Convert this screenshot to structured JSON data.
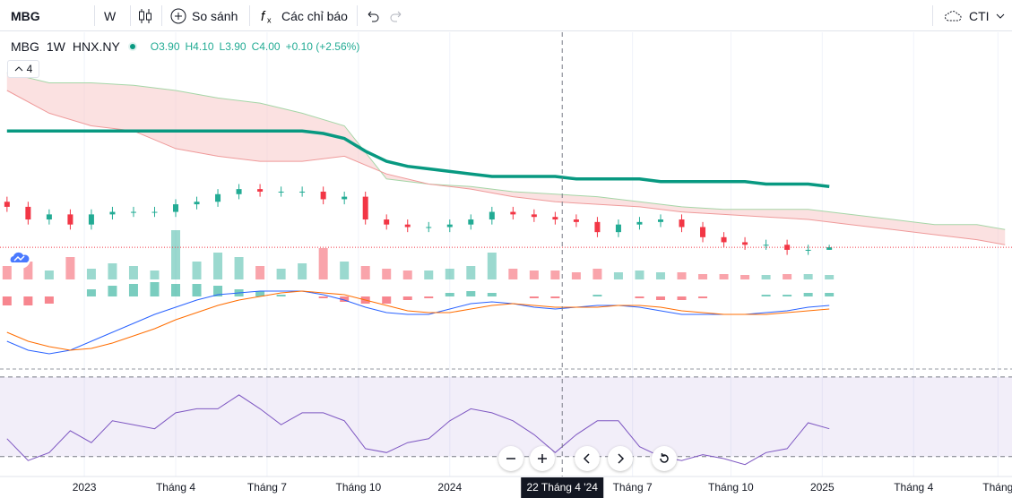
{
  "toolbar": {
    "symbol": "MBG",
    "interval": "W",
    "compare": "So sánh",
    "indicators": "Các chỉ báo",
    "layout": "CTI"
  },
  "legend": {
    "symbol": "MBG",
    "interval": "1W",
    "exchange": "HNX.NY",
    "open": "O3.90",
    "high": "H4.10",
    "low": "L3.90",
    "close": "C4.00",
    "change": "+0.10 (+2.56%)",
    "indicator_count": "4"
  },
  "chart_data": {
    "type": "candlestick",
    "xlim": [
      -1,
      143
    ],
    "ylim": [
      2.8,
      12.5
    ],
    "xticks": [
      {
        "value": 11,
        "label": "2023"
      },
      {
        "value": 24,
        "label": "Tháng 4"
      },
      {
        "value": 37,
        "label": "Tháng 7"
      },
      {
        "value": 50,
        "label": "Tháng 10"
      },
      {
        "value": 63,
        "label": "2024"
      },
      {
        "value": 89,
        "label": "Tháng 7"
      },
      {
        "value": 103,
        "label": "Tháng 10"
      },
      {
        "value": 116,
        "label": "2025"
      },
      {
        "value": 129,
        "label": "Tháng 4"
      },
      {
        "value": 141,
        "label": "Tháng"
      }
    ],
    "grid": true,
    "crosshair": {
      "value": 79,
      "label": "22 Tháng 4 '24"
    },
    "up_color": "#22ab94",
    "down_color": "#f23645",
    "x": [
      0,
      3,
      6,
      9,
      12,
      15,
      18,
      21,
      24,
      27,
      30,
      33,
      36,
      39,
      42,
      45,
      48,
      51,
      54,
      57,
      60,
      63,
      66,
      69,
      72,
      75,
      78,
      81,
      84,
      87,
      90,
      93,
      96,
      99,
      102,
      105,
      108,
      111,
      114,
      117
    ],
    "open": [
      5.8,
      5.6,
      5.1,
      5.3,
      4.9,
      5.3,
      5.4,
      5.4,
      5.4,
      5.7,
      5.8,
      6.1,
      6.3,
      6.2,
      6.2,
      6.2,
      5.9,
      6.0,
      5.1,
      4.9,
      4.8,
      4.8,
      4.9,
      5.1,
      5.4,
      5.3,
      5.2,
      5.1,
      5.0,
      4.6,
      4.9,
      5.0,
      5.1,
      4.8,
      4.4,
      4.2,
      4.1,
      4.1,
      3.9,
      3.9
    ],
    "high": [
      6.0,
      5.8,
      5.5,
      5.5,
      5.5,
      5.6,
      5.6,
      5.6,
      5.9,
      6.0,
      6.3,
      6.5,
      6.5,
      6.4,
      6.4,
      6.4,
      6.2,
      6.2,
      5.3,
      5.1,
      5.0,
      5.1,
      5.3,
      5.6,
      5.6,
      5.5,
      5.4,
      5.3,
      5.2,
      5.1,
      5.2,
      5.3,
      5.3,
      5.0,
      4.6,
      4.4,
      4.3,
      4.3,
      4.1,
      4.1
    ],
    "low": [
      5.4,
      4.9,
      4.9,
      4.7,
      4.7,
      5.1,
      5.2,
      5.2,
      5.2,
      5.5,
      5.6,
      5.9,
      6.0,
      6.0,
      6.0,
      5.7,
      5.7,
      4.9,
      4.7,
      4.6,
      4.6,
      4.6,
      4.7,
      4.9,
      5.1,
      5.0,
      4.9,
      4.8,
      4.4,
      4.4,
      4.7,
      4.8,
      4.6,
      4.2,
      4.0,
      3.9,
      3.9,
      3.7,
      3.7,
      3.9
    ],
    "close": [
      5.6,
      5.1,
      5.3,
      4.9,
      5.3,
      5.4,
      5.4,
      5.4,
      5.7,
      5.8,
      6.1,
      6.3,
      6.2,
      6.2,
      6.2,
      5.9,
      6.0,
      5.1,
      4.9,
      4.8,
      4.8,
      4.9,
      5.1,
      5.4,
      5.3,
      5.2,
      5.1,
      5.0,
      4.6,
      4.9,
      5.0,
      5.1,
      4.8,
      4.4,
      4.2,
      4.1,
      4.1,
      3.9,
      3.9,
      4.0
    ],
    "ma": {
      "color": "#089981",
      "values": [
        8.6,
        8.6,
        8.6,
        8.6,
        8.6,
        8.6,
        8.6,
        8.6,
        8.6,
        8.6,
        8.6,
        8.6,
        8.6,
        8.6,
        8.6,
        8.5,
        8.3,
        7.8,
        7.4,
        7.2,
        7.1,
        7.0,
        6.9,
        6.8,
        6.8,
        6.8,
        6.8,
        6.7,
        6.7,
        6.7,
        6.7,
        6.6,
        6.6,
        6.6,
        6.6,
        6.6,
        6.5,
        6.5,
        6.5,
        6.4
      ]
    },
    "cloud": {
      "fill": "#f7c4c4",
      "line_a": "#a5d6a7",
      "line_b": "#ef9a9a",
      "x": [
        0,
        6,
        12,
        18,
        24,
        30,
        36,
        42,
        48,
        54,
        60,
        66,
        72,
        78,
        84,
        90,
        96,
        102,
        108,
        114,
        120,
        126,
        132,
        138,
        142
      ],
      "span_a": [
        10.9,
        10.5,
        10.5,
        10.4,
        10.2,
        9.9,
        9.7,
        9.3,
        8.8,
        6.7,
        6.5,
        6.4,
        6.2,
        6.1,
        6.0,
        5.8,
        5.6,
        5.5,
        5.5,
        5.5,
        5.3,
        5.1,
        4.9,
        4.9,
        4.7
      ],
      "span_b": [
        10.2,
        9.3,
        8.8,
        8.6,
        7.9,
        7.6,
        7.4,
        7.4,
        7.6,
        6.9,
        6.5,
        6.3,
        6.0,
        5.8,
        5.7,
        5.6,
        5.4,
        5.3,
        5.2,
        5.1,
        4.9,
        4.7,
        4.5,
        4.3,
        4.1
      ]
    },
    "volume": {
      "ylim": [
        0,
        70
      ],
      "values": [
        15,
        20,
        10,
        25,
        12,
        18,
        15,
        10,
        55,
        20,
        30,
        25,
        15,
        12,
        18,
        35,
        20,
        15,
        12,
        10,
        10,
        12,
        15,
        30,
        12,
        10,
        10,
        8,
        12,
        8,
        10,
        8,
        8,
        6,
        6,
        5,
        5,
        6,
        6,
        5
      ]
    },
    "macd": {
      "ylim": [
        -0.37,
        0.095
      ],
      "line_color": "#2962ff",
      "signal_color": "#ff6d00",
      "line": [
        -0.25,
        -0.3,
        -0.32,
        -0.3,
        -0.25,
        -0.2,
        -0.15,
        -0.1,
        -0.06,
        -0.02,
        0.01,
        0.02,
        0.03,
        0.03,
        0.03,
        0.01,
        -0.02,
        -0.06,
        -0.09,
        -0.1,
        -0.1,
        -0.07,
        -0.04,
        -0.03,
        -0.04,
        -0.06,
        -0.07,
        -0.06,
        -0.05,
        -0.05,
        -0.06,
        -0.08,
        -0.1,
        -0.1,
        -0.1,
        -0.1,
        -0.09,
        -0.08,
        -0.06,
        -0.05
      ],
      "signal": [
        -0.2,
        -0.25,
        -0.28,
        -0.3,
        -0.29,
        -0.26,
        -0.22,
        -0.18,
        -0.13,
        -0.09,
        -0.05,
        -0.02,
        0,
        0.02,
        0.03,
        0.02,
        0.01,
        -0.02,
        -0.05,
        -0.08,
        -0.09,
        -0.09,
        -0.07,
        -0.05,
        -0.04,
        -0.05,
        -0.06,
        -0.06,
        -0.06,
        -0.05,
        -0.05,
        -0.06,
        -0.08,
        -0.09,
        -0.1,
        -0.1,
        -0.1,
        -0.09,
        -0.08,
        -0.07
      ],
      "histogram": [
        -0.05,
        -0.05,
        -0.04,
        0,
        0.04,
        0.06,
        0.07,
        0.08,
        0.07,
        0.07,
        0.06,
        0.04,
        0.03,
        0.01,
        0,
        -0.01,
        -0.03,
        -0.04,
        -0.04,
        -0.02,
        -0.01,
        0.02,
        0.03,
        0.02,
        0,
        -0.01,
        -0.01,
        0,
        0.01,
        0,
        -0.01,
        -0.02,
        -0.02,
        -0.01,
        0,
        0,
        0.01,
        0.01,
        0.02,
        0.02
      ]
    },
    "rsi": {
      "ylim": [
        20,
        74
      ],
      "color": "#7e57c2",
      "bands": [
        70,
        30
      ],
      "values": [
        39,
        28,
        32,
        43,
        37,
        48,
        46,
        44,
        52,
        54,
        54,
        61,
        54,
        46,
        52,
        52,
        48,
        34,
        32,
        37,
        39,
        48,
        54,
        52,
        48,
        41,
        32,
        41,
        48,
        48,
        35,
        30,
        28,
        31,
        29,
        26,
        32,
        34,
        47,
        44
      ]
    }
  }
}
